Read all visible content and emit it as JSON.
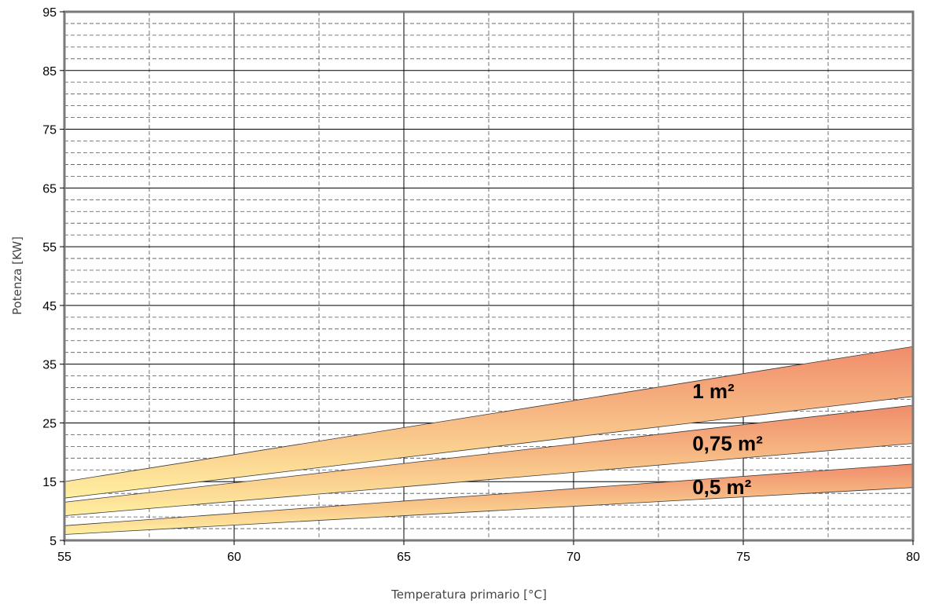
{
  "chart_data": {
    "type": "area",
    "title": "",
    "xlabel": "Temperatura primario [°C]",
    "ylabel": "Potenza [KW]",
    "xlim": [
      55,
      80
    ],
    "ylim": [
      5,
      95
    ],
    "x_ticks": [
      55,
      60,
      65,
      70,
      75,
      80
    ],
    "y_ticks": [
      5,
      15,
      25,
      35,
      45,
      55,
      65,
      75,
      85,
      95
    ],
    "grid": {
      "major": "solid",
      "minor": "dashed",
      "minor_x_step": 2.5,
      "minor_y_step": 2
    },
    "band_colors": {
      "top": "#f08c6c",
      "bottom": "#fff0a0"
    },
    "series": [
      {
        "name": "1 m²",
        "x": [
          55,
          80
        ],
        "upper": [
          15.0,
          38.0
        ],
        "lower": [
          12.2,
          29.5
        ],
        "label_at": [
          73.5,
          29.2
        ]
      },
      {
        "name": "0,75 m²",
        "x": [
          55,
          80
        ],
        "upper": [
          11.5,
          28.0
        ],
        "lower": [
          9.2,
          21.5
        ],
        "label_at": [
          73.5,
          20.3
        ]
      },
      {
        "name": "0,5 m²",
        "x": [
          55,
          80
        ],
        "upper": [
          7.5,
          18.0
        ],
        "lower": [
          6.0,
          14.0
        ],
        "label_at": [
          73.5,
          12.9
        ]
      }
    ]
  }
}
